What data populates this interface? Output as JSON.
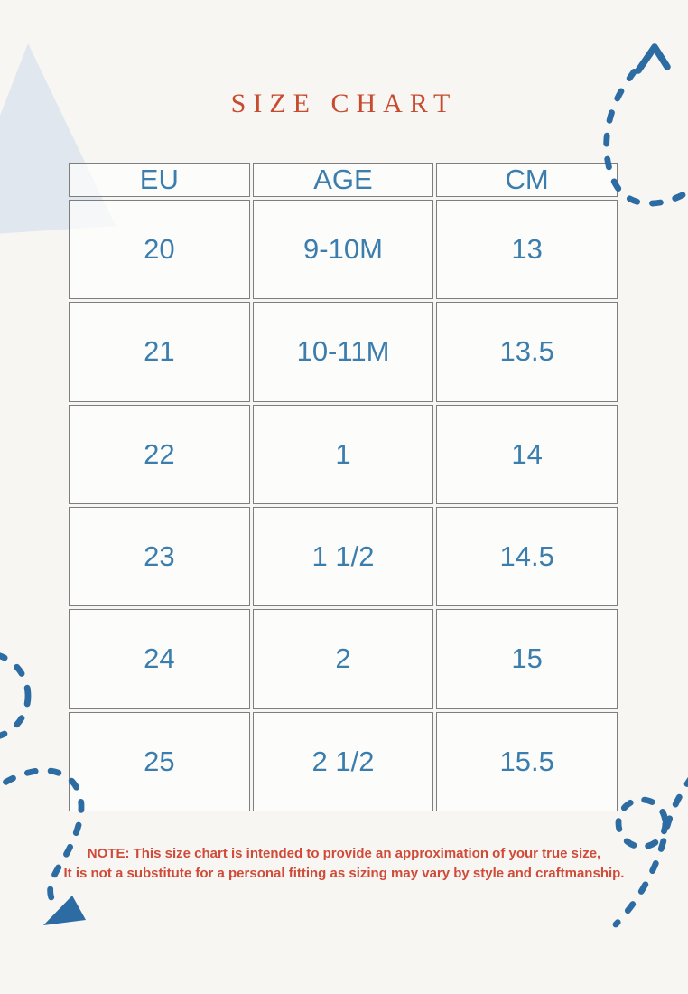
{
  "title": "SIZE CHART",
  "table": {
    "headers": [
      "EU",
      "AGE",
      "CM"
    ],
    "rows": [
      [
        "20",
        "9-10M",
        "13"
      ],
      [
        "21",
        "10-11M",
        "13.5"
      ],
      [
        "22",
        "1",
        "14"
      ],
      [
        "23",
        "1 1/2",
        "14.5"
      ],
      [
        "24",
        "2",
        "15"
      ],
      [
        "25",
        "2 1/2",
        "15.5"
      ]
    ]
  },
  "note": {
    "line1": "NOTE: This size chart is intended to provide an approximation of your true size,",
    "line2": "It is not a substitute for a personal fitting as sizing may vary by style and craftmanship."
  },
  "colors": {
    "title_accent": "#c84b2f",
    "table_text": "#3b7dad",
    "table_border": "#7e7e7e",
    "note_text": "#d04a38",
    "dash_blue": "#2d6ca3",
    "triangle_fill": "#d9e3ec",
    "page_background": "#f7f6f3"
  },
  "icons": {
    "top_right": "dashed-arrow-up-icon",
    "bottom_left": "dashed-arrow-down-icon",
    "bottom_right": "dashed-loop-icon",
    "top_left": "triangle-shape"
  }
}
